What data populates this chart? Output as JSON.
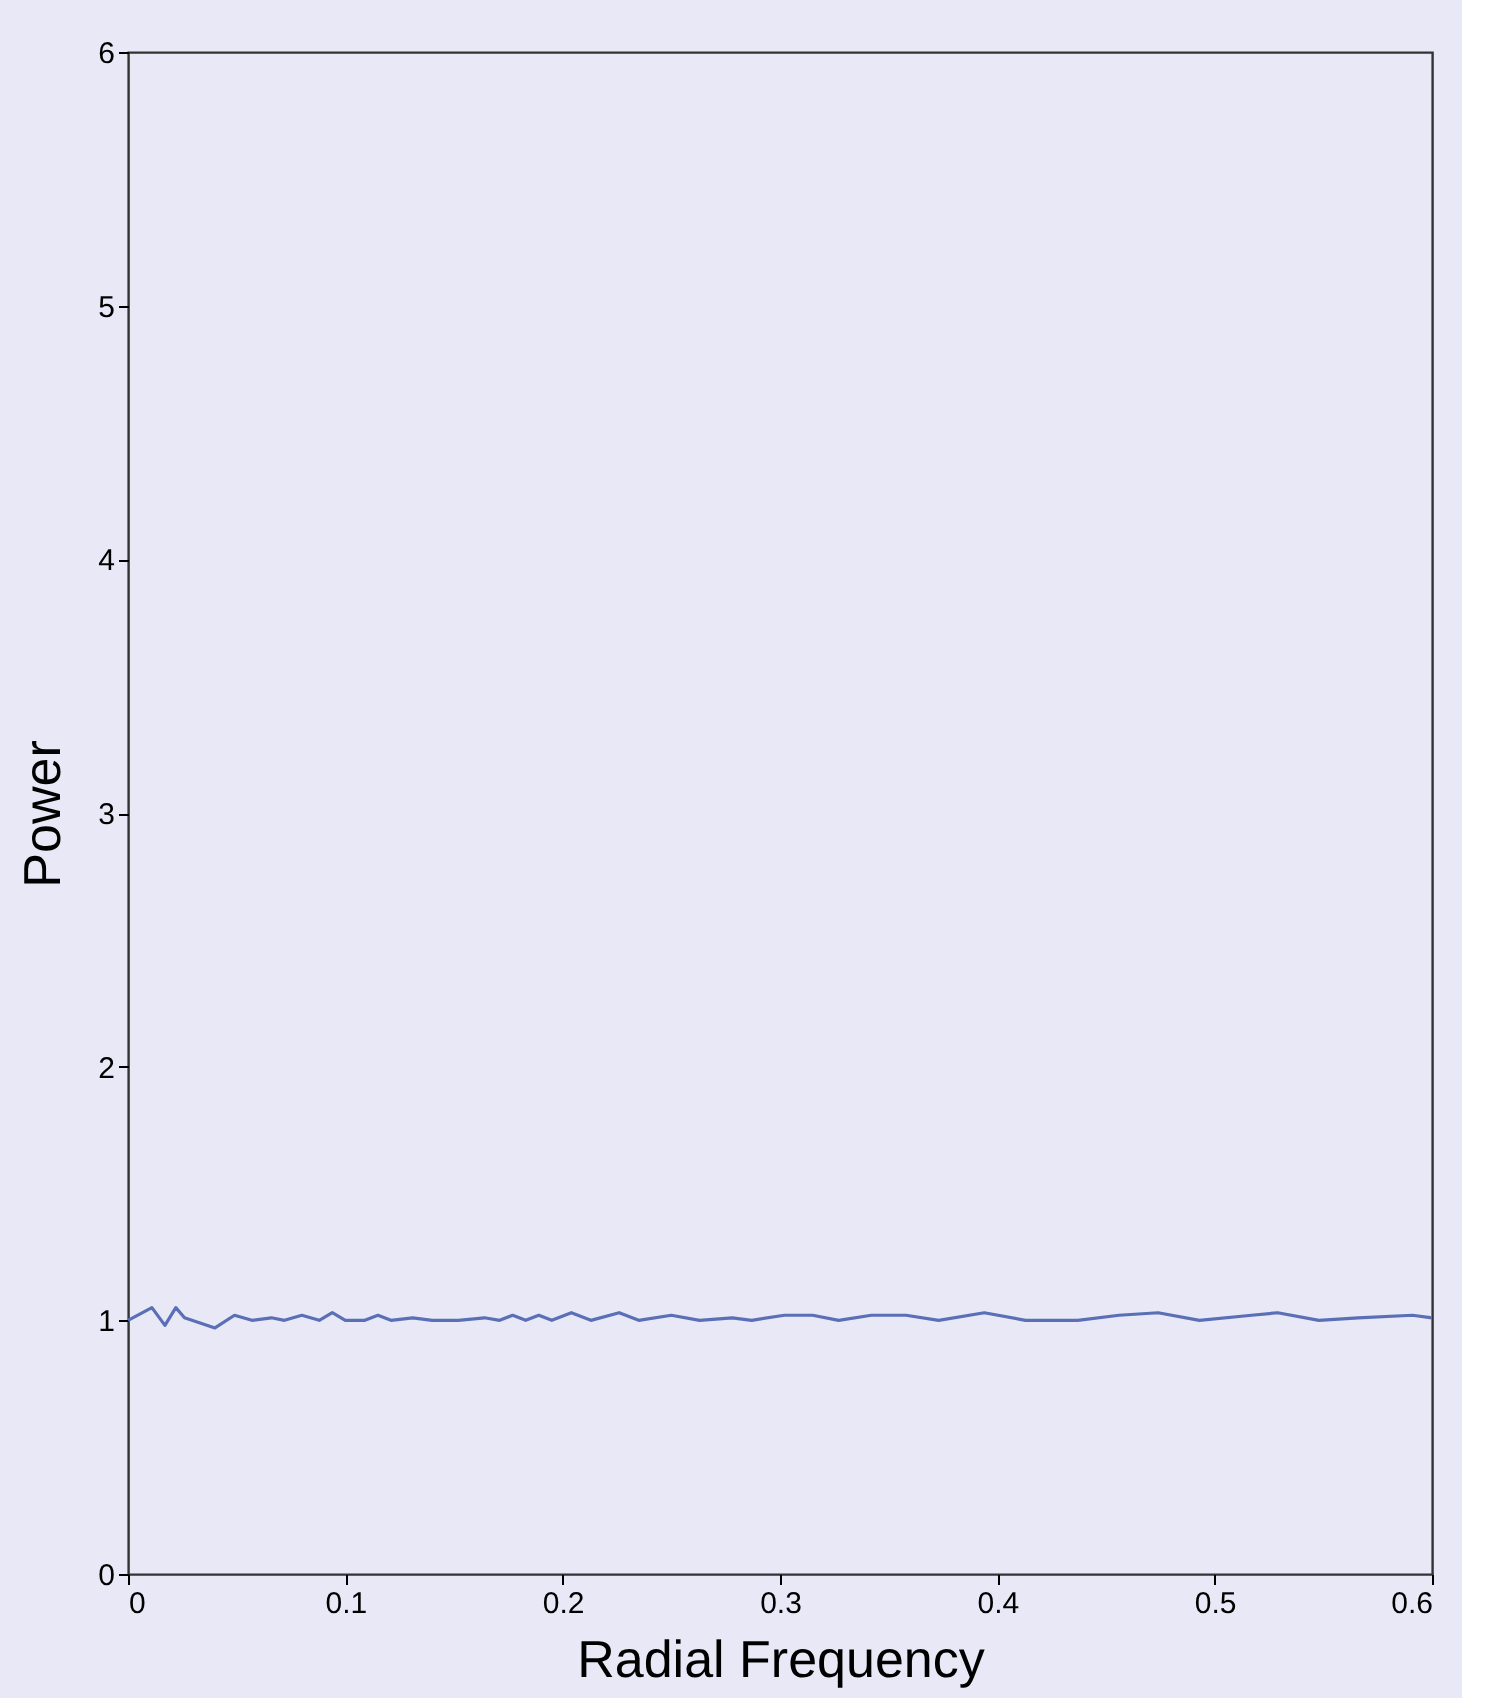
{
  "chart_data": {
    "type": "line",
    "xlabel": "Radial Frequency",
    "ylabel": "Power",
    "x": [
      0,
      0.011,
      0.017,
      0.022,
      0.026,
      0.04,
      0.049,
      0.057,
      0.066,
      0.072,
      0.08,
      0.088,
      0.094,
      0.1,
      0.109,
      0.115,
      0.121,
      0.131,
      0.14,
      0.152,
      0.164,
      0.171,
      0.177,
      0.183,
      0.189,
      0.195,
      0.204,
      0.213,
      0.226,
      0.235,
      0.25,
      0.263,
      0.278,
      0.287,
      0.302,
      0.315,
      0.327,
      0.342,
      0.358,
      0.373,
      0.394,
      0.413,
      0.437,
      0.456,
      0.474,
      0.493,
      0.517,
      0.529,
      0.548,
      0.566,
      0.591,
      0.6
    ],
    "series": [
      {
        "color": "#5a6fb5",
        "values": [
          1.0,
          1.05,
          0.98,
          1.05,
          1.01,
          0.97,
          1.02,
          1.0,
          1.01,
          1.0,
          1.02,
          1.0,
          1.03,
          1.0,
          1.0,
          1.02,
          1.0,
          1.01,
          1.0,
          1.0,
          1.01,
          1.0,
          1.02,
          1.0,
          1.02,
          1.0,
          1.03,
          1.0,
          1.03,
          1.0,
          1.02,
          1.0,
          1.01,
          1.0,
          1.02,
          1.02,
          1.0,
          1.02,
          1.02,
          1.0,
          1.03,
          1.0,
          1.0,
          1.02,
          1.03,
          1.0,
          1.02,
          1.03,
          1.0,
          1.01,
          1.02,
          1.01
        ]
      }
    ],
    "xlim": [
      0,
      0.6
    ],
    "xticks": [
      0,
      0.1,
      0.2,
      0.3,
      0.4,
      0.5,
      0.6
    ],
    "ylim": [
      0,
      6
    ],
    "yticks": [
      0,
      1,
      2,
      3,
      4,
      5,
      6
    ],
    "grid": false,
    "legend": false,
    "marker": "none",
    "line_style": "solid"
  }
}
